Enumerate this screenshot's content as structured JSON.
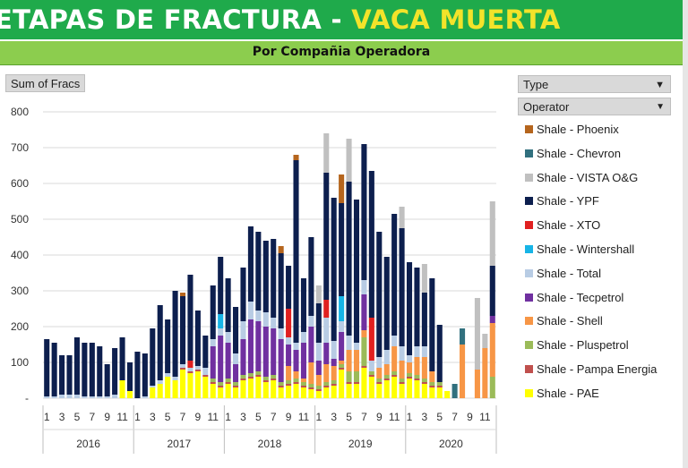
{
  "title_part1": "ETAPAS DE FRACTURA -",
  "title_part2": "VACA MUERTA",
  "subtitle": "Por Compañia Operadora",
  "value_field_button": "Sum of Fracs",
  "filter_type_label": "Type",
  "filter_operator_label": "Operator",
  "colors": {
    "title_band": "#1faa4b",
    "subtitle_band": "#8ccd4e",
    "title_accent": "#f3e32a"
  },
  "chart_data": {
    "type": "bar",
    "stacked": true,
    "ylim": [
      0,
      800
    ],
    "yticks": [
      0,
      100,
      200,
      300,
      400,
      500,
      600,
      700,
      800
    ],
    "ytick_labels": [
      "-",
      "100",
      "200",
      "300",
      "400",
      "500",
      "600",
      "700",
      "800"
    ],
    "grid": true,
    "legend_position": "right",
    "years": [
      "2016",
      "2017",
      "2018",
      "2019",
      "2020"
    ],
    "month_labels": [
      "1",
      "3",
      "5",
      "7",
      "9",
      "11"
    ],
    "series": [
      {
        "name": "Shale - PAE",
        "color": "#ffff00",
        "values": [
          0,
          0,
          0,
          0,
          0,
          0,
          0,
          0,
          0,
          0,
          50,
          20,
          0,
          0,
          30,
          40,
          60,
          50,
          80,
          70,
          75,
          60,
          40,
          30,
          40,
          30,
          50,
          55,
          60,
          45,
          50,
          30,
          35,
          40,
          30,
          25,
          20,
          30,
          35,
          80,
          40,
          40,
          85,
          60,
          40,
          50,
          60,
          40,
          55,
          50,
          40,
          30,
          30,
          20,
          0,
          0,
          0,
          0,
          0,
          0
        ]
      },
      {
        "name": "Shale - Pampa Energia",
        "color": "#c0504d",
        "values": [
          0,
          0,
          0,
          0,
          0,
          0,
          0,
          0,
          0,
          0,
          0,
          0,
          0,
          0,
          0,
          0,
          0,
          0,
          5,
          5,
          5,
          5,
          5,
          5,
          5,
          5,
          5,
          5,
          5,
          5,
          5,
          5,
          5,
          5,
          5,
          5,
          5,
          5,
          5,
          5,
          5,
          5,
          5,
          5,
          5,
          5,
          5,
          5,
          5,
          5,
          5,
          5,
          5,
          0,
          0,
          0,
          0,
          0,
          0,
          0
        ]
      },
      {
        "name": "Shale - Pluspetrol",
        "color": "#9bbb59",
        "values": [
          0,
          0,
          0,
          0,
          0,
          0,
          0,
          0,
          0,
          0,
          0,
          0,
          0,
          0,
          0,
          0,
          0,
          0,
          0,
          0,
          0,
          0,
          10,
          10,
          10,
          10,
          10,
          10,
          10,
          10,
          10,
          10,
          10,
          10,
          10,
          10,
          10,
          10,
          10,
          10,
          30,
          30,
          80,
          10,
          10,
          10,
          10,
          10,
          10,
          10,
          10,
          10,
          10,
          0,
          0,
          0,
          0,
          0,
          0,
          60
        ]
      },
      {
        "name": "Shale - Shell",
        "color": "#f79646",
        "values": [
          0,
          0,
          0,
          0,
          0,
          0,
          0,
          0,
          0,
          0,
          0,
          0,
          0,
          0,
          0,
          0,
          0,
          0,
          0,
          0,
          0,
          0,
          0,
          0,
          0,
          0,
          0,
          0,
          0,
          0,
          0,
          0,
          40,
          20,
          10,
          60,
          30,
          50,
          40,
          10,
          60,
          60,
          20,
          0,
          30,
          30,
          70,
          50,
          30,
          50,
          60,
          30,
          0,
          0,
          0,
          150,
          0,
          80,
          140,
          150
        ]
      },
      {
        "name": "Shale - Tecpetrol",
        "color": "#7030a0",
        "values": [
          0,
          0,
          0,
          0,
          0,
          0,
          0,
          0,
          0,
          0,
          0,
          0,
          0,
          0,
          0,
          0,
          0,
          0,
          0,
          0,
          0,
          0,
          90,
          130,
          100,
          50,
          100,
          150,
          140,
          140,
          130,
          120,
          60,
          60,
          100,
          100,
          40,
          60,
          20,
          80,
          0,
          0,
          100,
          0,
          0,
          0,
          0,
          0,
          0,
          0,
          0,
          0,
          0,
          0,
          0,
          0,
          0,
          0,
          0,
          20
        ]
      },
      {
        "name": "Shale - Total",
        "color": "#b8cce4",
        "values": [
          5,
          5,
          10,
          10,
          10,
          5,
          5,
          5,
          5,
          10,
          0,
          0,
          0,
          5,
          5,
          10,
          10,
          10,
          10,
          10,
          10,
          20,
          20,
          20,
          30,
          30,
          50,
          50,
          30,
          40,
          30,
          30,
          20,
          20,
          30,
          30,
          50,
          70,
          50,
          30,
          40,
          20,
          40,
          30,
          30,
          40,
          30,
          40,
          20,
          30,
          30,
          0,
          0,
          0,
          0,
          0,
          0,
          0,
          0,
          0
        ]
      },
      {
        "name": "Shale - Tecpetrol",
        "color": "#7030a0",
        "values": [
          0,
          0,
          0,
          0,
          0,
          0,
          0,
          0,
          0,
          0,
          0,
          0,
          0,
          0,
          0,
          0,
          0,
          0,
          0,
          0,
          0,
          0,
          0,
          0,
          0,
          0,
          0,
          0,
          0,
          0,
          0,
          0,
          0,
          0,
          0,
          0,
          0,
          0,
          0,
          0,
          0,
          0,
          0,
          0,
          0,
          0,
          0,
          0,
          0,
          0,
          0,
          0,
          0,
          0,
          0,
          0,
          0,
          0,
          0,
          0
        ]
      },
      {
        "name": "Shale - Wintershall",
        "color": "#17b4e6",
        "values": [
          0,
          0,
          0,
          0,
          0,
          0,
          0,
          0,
          0,
          0,
          0,
          0,
          0,
          0,
          0,
          0,
          0,
          0,
          0,
          0,
          0,
          0,
          0,
          40,
          0,
          0,
          0,
          0,
          0,
          0,
          0,
          0,
          0,
          0,
          0,
          0,
          0,
          0,
          0,
          70,
          0,
          0,
          0,
          0,
          0,
          0,
          0,
          0,
          0,
          0,
          0,
          0,
          0,
          0,
          0,
          0,
          0,
          0,
          0,
          0
        ]
      },
      {
        "name": "Shale - XTO",
        "color": "#e02020",
        "values": [
          0,
          0,
          0,
          0,
          0,
          0,
          0,
          0,
          0,
          0,
          0,
          0,
          0,
          0,
          0,
          0,
          0,
          0,
          0,
          20,
          0,
          0,
          0,
          0,
          0,
          0,
          0,
          0,
          0,
          0,
          0,
          0,
          80,
          0,
          0,
          0,
          0,
          50,
          0,
          0,
          0,
          0,
          0,
          120,
          0,
          0,
          0,
          0,
          0,
          0,
          0,
          0,
          0,
          0,
          0,
          0,
          0,
          0,
          0,
          0
        ]
      },
      {
        "name": "Shale - YPF",
        "color": "#0d1f4e",
        "values": [
          160,
          150,
          110,
          110,
          160,
          150,
          150,
          140,
          90,
          130,
          120,
          80,
          130,
          120,
          160,
          210,
          150,
          240,
          190,
          240,
          155,
          90,
          150,
          160,
          150,
          130,
          150,
          210,
          220,
          200,
          220,
          210,
          120,
          510,
          150,
          220,
          110,
          355,
          400,
          260,
          430,
          400,
          380,
          410,
          350,
          260,
          340,
          330,
          260,
          220,
          150,
          260,
          160,
          0,
          0,
          0,
          0,
          0,
          0,
          140
        ]
      },
      {
        "name": "Shale - VISTA O&G",
        "color": "#c0c0c0",
        "values": [
          0,
          0,
          0,
          0,
          0,
          0,
          0,
          0,
          0,
          0,
          0,
          0,
          0,
          0,
          0,
          0,
          0,
          0,
          0,
          0,
          0,
          0,
          0,
          0,
          0,
          0,
          0,
          0,
          0,
          0,
          0,
          0,
          0,
          0,
          0,
          0,
          50,
          110,
          0,
          0,
          120,
          0,
          0,
          0,
          0,
          0,
          0,
          60,
          0,
          0,
          80,
          0,
          0,
          0,
          0,
          0,
          0,
          200,
          40,
          180
        ]
      },
      {
        "name": "Shale - Chevron",
        "color": "#31707e",
        "values": [
          0,
          0,
          0,
          0,
          0,
          0,
          0,
          0,
          0,
          0,
          0,
          0,
          0,
          0,
          0,
          0,
          0,
          0,
          0,
          0,
          0,
          0,
          0,
          0,
          0,
          0,
          0,
          0,
          0,
          0,
          0,
          0,
          0,
          0,
          0,
          0,
          0,
          0,
          0,
          0,
          0,
          0,
          0,
          0,
          0,
          0,
          0,
          0,
          0,
          0,
          0,
          0,
          0,
          0,
          40,
          45,
          0,
          0,
          0,
          0
        ]
      },
      {
        "name": "Shale - Phoenix",
        "color": "#b5651d",
        "values": [
          0,
          0,
          0,
          0,
          0,
          0,
          0,
          0,
          0,
          0,
          0,
          0,
          0,
          0,
          0,
          0,
          0,
          0,
          10,
          0,
          0,
          0,
          0,
          0,
          0,
          0,
          0,
          0,
          0,
          0,
          0,
          20,
          0,
          15,
          0,
          0,
          0,
          0,
          0,
          80,
          0,
          0,
          0,
          0,
          0,
          0,
          0,
          0,
          0,
          0,
          0,
          0,
          0,
          0,
          0,
          0,
          0,
          0,
          0,
          0
        ]
      }
    ]
  },
  "legend": [
    {
      "label": "Shale - Phoenix",
      "color": "#b5651d"
    },
    {
      "label": "Shale - Chevron",
      "color": "#31707e"
    },
    {
      "label": "Shale - VISTA O&G",
      "color": "#c0c0c0"
    },
    {
      "label": "Shale - YPF",
      "color": "#0d1f4e"
    },
    {
      "label": "Shale - XTO",
      "color": "#e02020"
    },
    {
      "label": "Shale - Wintershall",
      "color": "#17b4e6"
    },
    {
      "label": "Shale - Total",
      "color": "#b8cce4"
    },
    {
      "label": "Shale - Tecpetrol",
      "color": "#7030a0"
    },
    {
      "label": "Shale - Shell",
      "color": "#f79646"
    },
    {
      "label": "Shale - Pluspetrol",
      "color": "#9bbb59"
    },
    {
      "label": "Shale - Pampa Energia",
      "color": "#c0504d"
    },
    {
      "label": "Shale - PAE",
      "color": "#ffff00"
    }
  ]
}
